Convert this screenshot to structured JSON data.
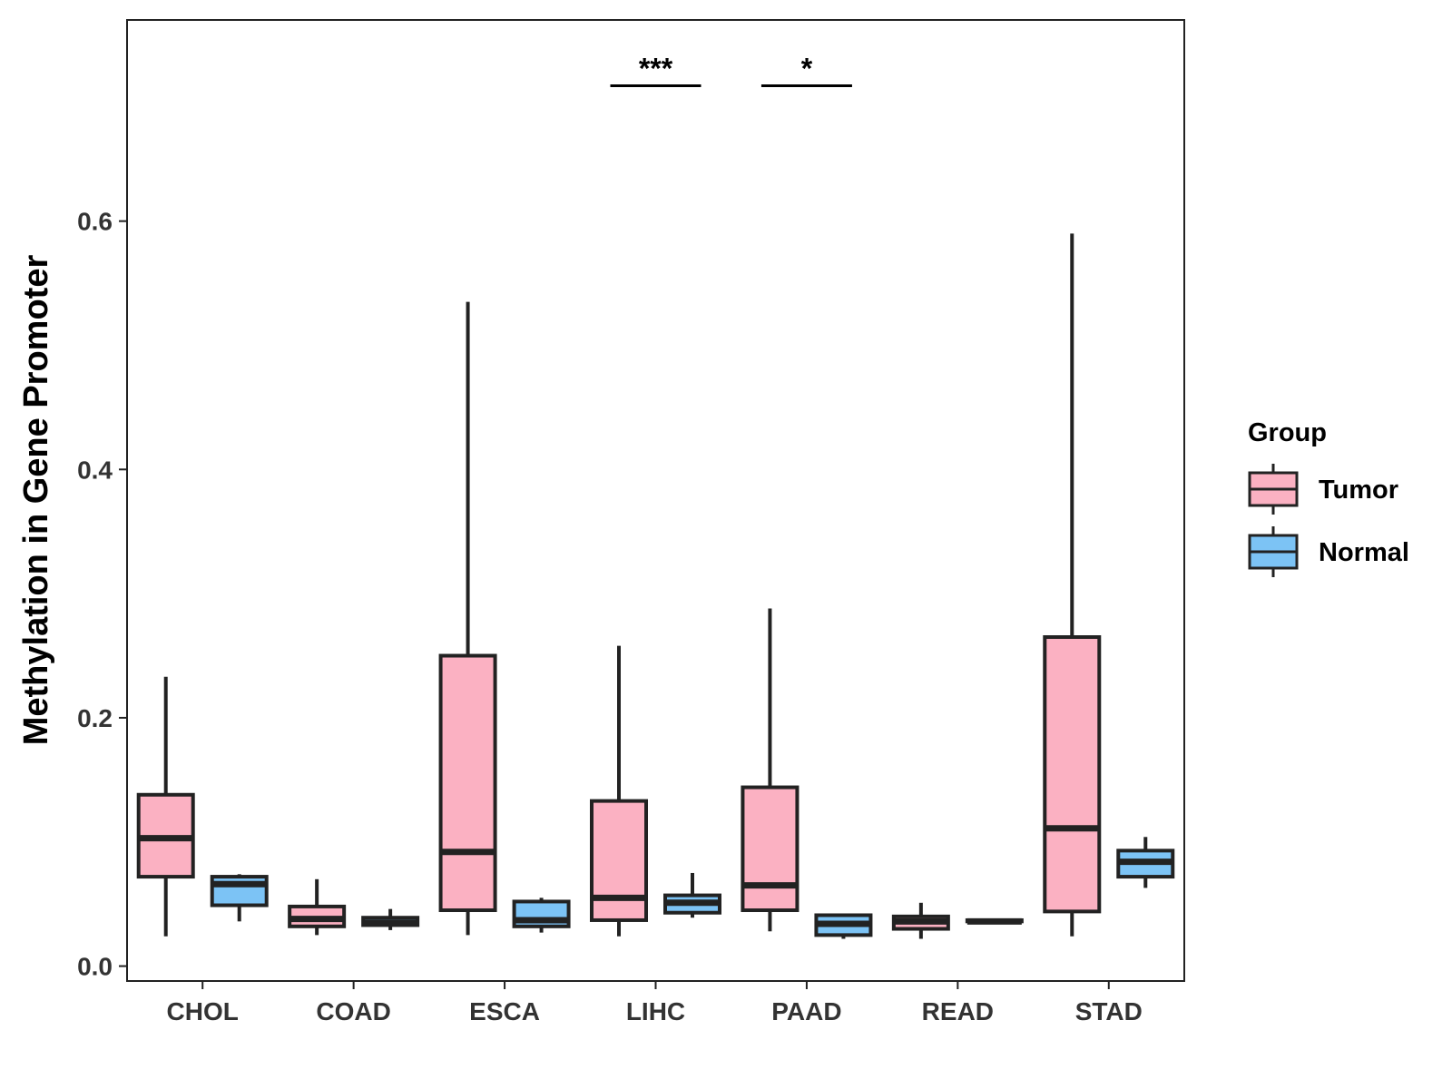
{
  "chart_data": {
    "type": "boxplot",
    "ylabel": "Methylation in Gene Promoter",
    "xlabel": "",
    "ylim": [
      -0.012,
      0.762
    ],
    "yticks": [
      0.0,
      0.2,
      0.4,
      0.6
    ],
    "ytick_labels": [
      "0.0",
      "0.2",
      "0.4",
      "0.6"
    ],
    "categories": [
      "CHOL",
      "COAD",
      "ESCA",
      "LIHC",
      "PAAD",
      "READ",
      "STAD"
    ],
    "legend": {
      "title": "Group",
      "position": "right"
    },
    "series": [
      {
        "name": "Tumor",
        "color": "#FBB1C2",
        "boxes": [
          {
            "min": 0.024,
            "q1": 0.072,
            "median": 0.103,
            "q3": 0.138,
            "max": 0.233
          },
          {
            "min": 0.025,
            "q1": 0.032,
            "median": 0.038,
            "q3": 0.048,
            "max": 0.07
          },
          {
            "min": 0.025,
            "q1": 0.045,
            "median": 0.092,
            "q3": 0.25,
            "max": 0.535
          },
          {
            "min": 0.024,
            "q1": 0.037,
            "median": 0.055,
            "q3": 0.133,
            "max": 0.258
          },
          {
            "min": 0.028,
            "q1": 0.045,
            "median": 0.065,
            "q3": 0.144,
            "max": 0.288
          },
          {
            "min": 0.022,
            "q1": 0.03,
            "median": 0.036,
            "q3": 0.04,
            "max": 0.051
          },
          {
            "min": 0.024,
            "q1": 0.044,
            "median": 0.111,
            "q3": 0.265,
            "max": 0.59
          }
        ]
      },
      {
        "name": "Normal",
        "color": "#7CC3F5",
        "boxes": [
          {
            "min": 0.036,
            "q1": 0.049,
            "median": 0.066,
            "q3": 0.072,
            "max": 0.074
          },
          {
            "min": 0.029,
            "q1": 0.033,
            "median": 0.035,
            "q3": 0.039,
            "max": 0.046
          },
          {
            "min": 0.027,
            "q1": 0.032,
            "median": 0.037,
            "q3": 0.052,
            "max": 0.055
          },
          {
            "min": 0.039,
            "q1": 0.043,
            "median": 0.051,
            "q3": 0.057,
            "max": 0.075
          },
          {
            "min": 0.022,
            "q1": 0.025,
            "median": 0.034,
            "q3": 0.041,
            "max": 0.041
          },
          {
            "min": 0.035,
            "q1": 0.036,
            "median": 0.036,
            "q3": 0.037,
            "max": 0.038
          },
          {
            "min": 0.063,
            "q1": 0.072,
            "median": 0.084,
            "q3": 0.093,
            "max": 0.104
          }
        ]
      }
    ],
    "annotations": [
      {
        "label": "***",
        "category": "LIHC",
        "y": 0.709
      },
      {
        "label": "*",
        "category": "PAAD",
        "y": 0.709
      }
    ]
  }
}
